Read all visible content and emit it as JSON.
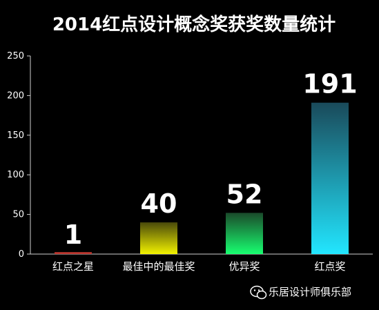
{
  "chart_data": {
    "type": "bar",
    "title": "2014红点设计概念奖获奖数量统计",
    "categories": [
      "红点之星",
      "最佳中的最佳奖",
      "优异奖",
      "红点奖"
    ],
    "values": [
      1,
      40,
      52,
      191
    ],
    "data_labels": [
      "1",
      "40",
      "52",
      "191"
    ],
    "ylim": [
      0,
      250
    ],
    "yticks": [
      0,
      50,
      100,
      150,
      200,
      250
    ],
    "ytick_labels": [
      "0",
      "50",
      "100",
      "150",
      "200",
      "250"
    ],
    "grid": false,
    "legend": "none",
    "bar_colors": [
      {
        "top": "#9a2b24",
        "bottom": "#c83a33"
      },
      {
        "top": "#4a4a0a",
        "bottom": "#f2f200"
      },
      {
        "top": "#1a4a2a",
        "bottom": "#18ff70"
      },
      {
        "top": "#1a4a5a",
        "bottom": "#22e6ff"
      }
    ]
  },
  "watermark": {
    "text": "乐居设计师俱乐部",
    "icon": "wechat-icon"
  }
}
